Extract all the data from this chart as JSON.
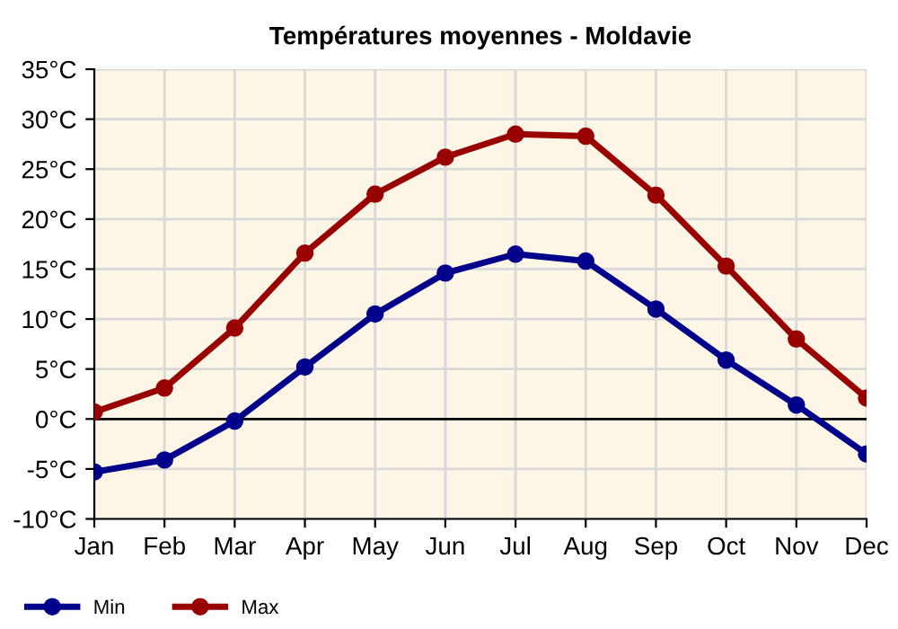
{
  "chart_data": {
    "type": "line",
    "title": "Températures moyennes - Moldavie",
    "categories": [
      "Jan",
      "Feb",
      "Mar",
      "Apr",
      "May",
      "Jun",
      "Jul",
      "Aug",
      "Sep",
      "Oct",
      "Nov",
      "Dec"
    ],
    "series": [
      {
        "name": "Min",
        "color": "#00008b",
        "values": [
          -5.3,
          -4.1,
          -0.2,
          5.2,
          10.5,
          14.6,
          16.5,
          15.8,
          11.0,
          5.9,
          1.4,
          -3.5
        ]
      },
      {
        "name": "Max",
        "color": "#990000",
        "values": [
          0.7,
          3.1,
          9.1,
          16.6,
          22.5,
          26.2,
          28.5,
          28.3,
          22.4,
          15.3,
          8.0,
          2.1
        ]
      }
    ],
    "ylim": [
      -10,
      35
    ],
    "yticks": [
      {
        "value": -10,
        "label": "-10°C"
      },
      {
        "value": -5,
        "label": "-5°C"
      },
      {
        "value": 0,
        "label": "0°C"
      },
      {
        "value": 5,
        "label": "5°C"
      },
      {
        "value": 10,
        "label": "10°C"
      },
      {
        "value": 15,
        "label": "15°C"
      },
      {
        "value": 20,
        "label": "20°C"
      },
      {
        "value": 25,
        "label": "25°C"
      },
      {
        "value": 30,
        "label": "30°C"
      },
      {
        "value": 35,
        "label": "35°C"
      }
    ],
    "ref_lines": [
      {
        "axis": "y",
        "value": 0,
        "color": "#000000"
      }
    ],
    "grid": true,
    "legend": "bottom left",
    "marker": "circle",
    "line_style": "solid"
  }
}
